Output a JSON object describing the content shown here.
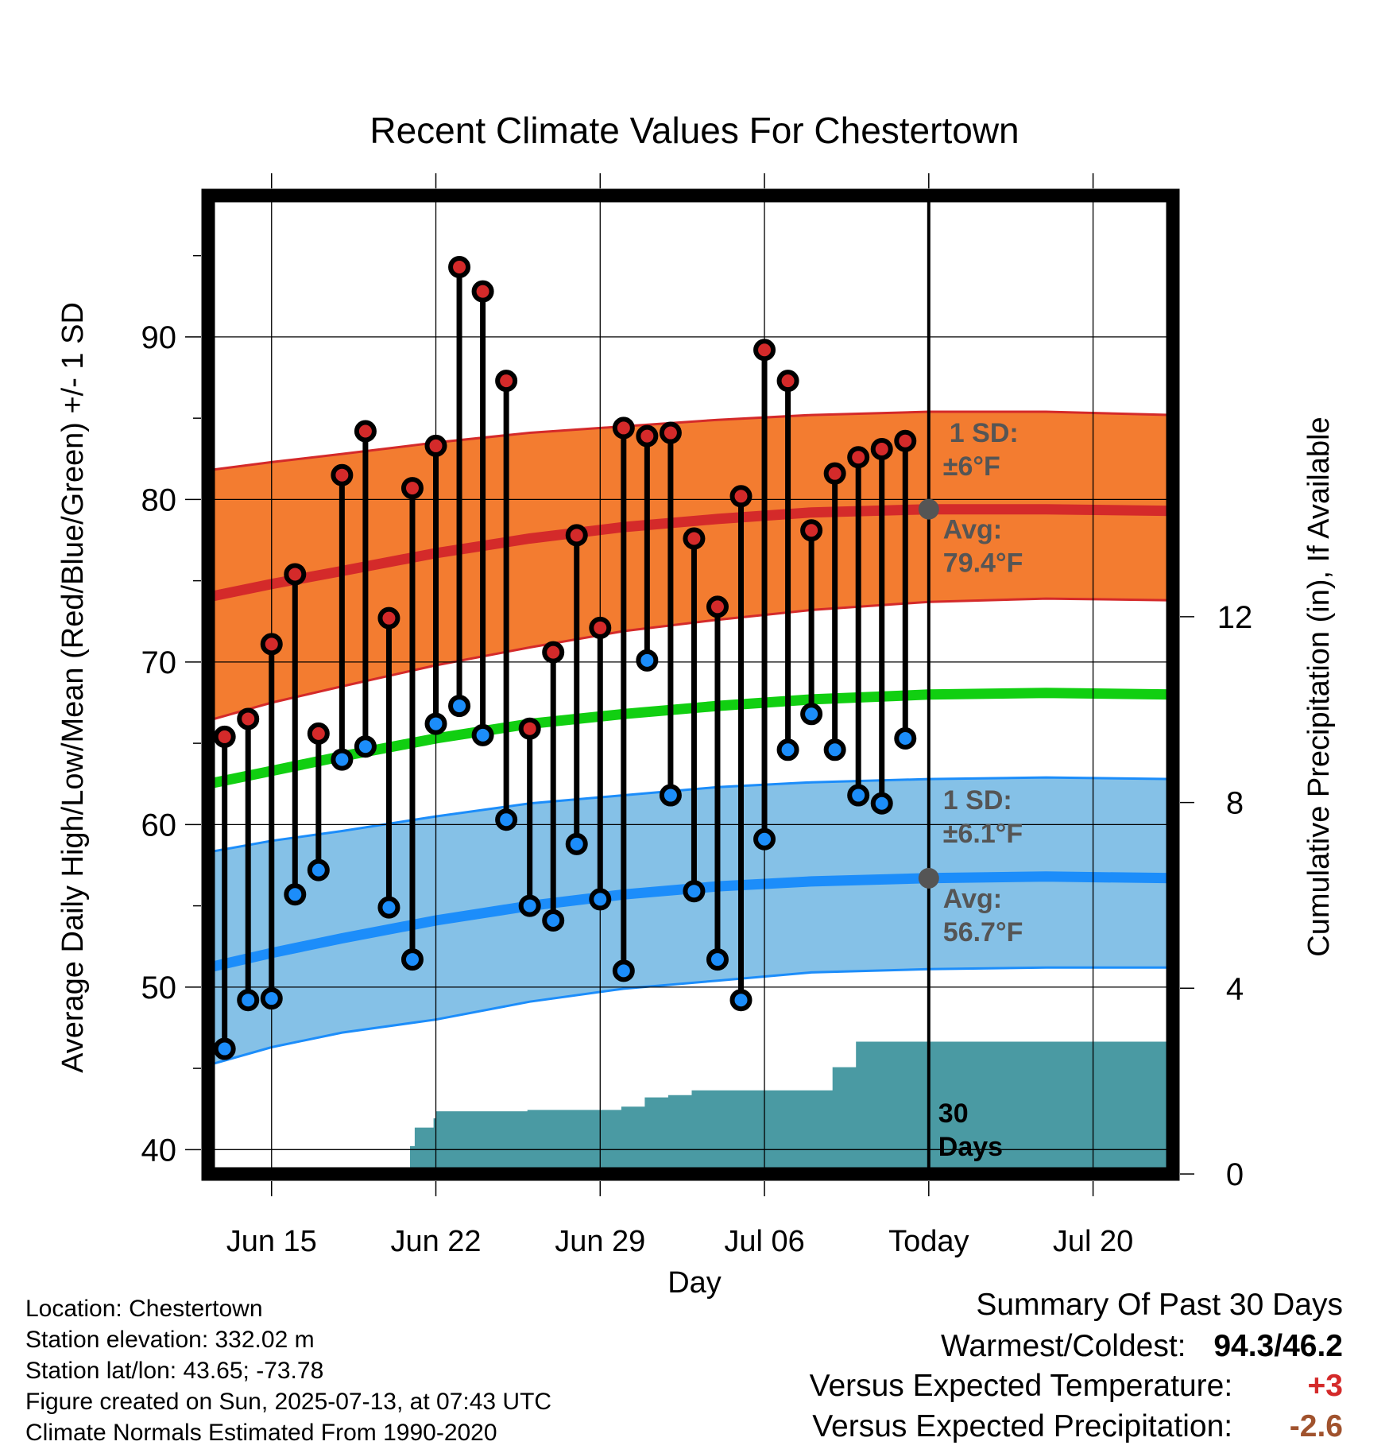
{
  "colors": {
    "high_band": "#f37c30",
    "high_mean": "#d42a2a",
    "low_band": "#85c1e7",
    "low_mean": "#1c8dfa",
    "mean_line": "#11cf11",
    "precip": "#4a9aa3",
    "high_dot": "#d42a2a",
    "low_dot": "#1c8dfa",
    "sd_label": "#555555",
    "plus_color": "#d42a2a",
    "minus_color": "#a0522d"
  },
  "chart_data": {
    "type": "line",
    "title": "Recent Climate Values For Chestertown",
    "xlabel": "Day",
    "ylabel": "Average Daily High/Low/Mean (Red/Blue/Green) +/- 1 SD",
    "y2label": "Cumulative Precipitation (in), If Available",
    "ylim": [
      38.5,
      98.7
    ],
    "y2lim": [
      0,
      21.07
    ],
    "yticks": [
      40,
      50,
      60,
      70,
      80,
      90
    ],
    "y2ticks": [
      0,
      4,
      8,
      12
    ],
    "xlim": [
      12.3,
      53.4
    ],
    "xticks": [
      {
        "x": 15,
        "label": "Jun 15"
      },
      {
        "x": 22,
        "label": "Jun 22"
      },
      {
        "x": 29,
        "label": "Jun 29"
      },
      {
        "x": 36,
        "label": "Jul 06"
      },
      {
        "x": 43,
        "label": "Today"
      },
      {
        "x": 50,
        "label": "Jul 20"
      }
    ],
    "today_x": 43,
    "grid": true,
    "daily": {
      "x": [
        13,
        14,
        15,
        16,
        17,
        18,
        19,
        20,
        21,
        22,
        23,
        24,
        25,
        26,
        27,
        28,
        29,
        30,
        31,
        32,
        33,
        34,
        35,
        36,
        37,
        38,
        39,
        40,
        41,
        42
      ],
      "high": [
        65.4,
        66.5,
        71.1,
        75.4,
        65.6,
        81.5,
        84.2,
        72.7,
        80.7,
        83.3,
        94.3,
        92.8,
        87.3,
        65.9,
        70.6,
        77.8,
        72.1,
        84.4,
        83.9,
        84.1,
        77.6,
        73.4,
        80.2,
        89.2,
        87.3,
        78.1,
        81.6,
        82.6,
        83.1,
        83.6
      ],
      "low": [
        46.2,
        49.2,
        49.3,
        55.7,
        57.2,
        64.0,
        64.8,
        54.9,
        51.7,
        66.2,
        67.3,
        65.5,
        60.3,
        55.0,
        54.1,
        58.8,
        55.4,
        51.0,
        70.1,
        61.8,
        55.9,
        51.7,
        49.2,
        59.1,
        64.6,
        66.8,
        64.6,
        61.8,
        61.3,
        65.3
      ]
    },
    "normals": {
      "x": [
        12.3,
        15,
        18,
        22,
        26,
        30,
        34,
        38,
        43,
        48,
        53.4
      ],
      "high_mean": [
        74.0,
        74.8,
        75.6,
        76.7,
        77.6,
        78.3,
        78.8,
        79.2,
        79.4,
        79.4,
        79.3
      ],
      "high_upper": [
        81.8,
        82.3,
        82.8,
        83.5,
        84.1,
        84.5,
        84.9,
        85.2,
        85.4,
        85.4,
        85.2
      ],
      "high_lower": [
        66.4,
        67.5,
        68.5,
        69.8,
        70.9,
        71.9,
        72.6,
        73.2,
        73.7,
        73.9,
        73.8
      ],
      "mean": [
        62.5,
        63.3,
        64.2,
        65.3,
        66.2,
        66.8,
        67.3,
        67.7,
        68.0,
        68.1,
        68.0
      ],
      "low_mean": [
        51.2,
        52.1,
        53.0,
        54.1,
        55.0,
        55.7,
        56.2,
        56.5,
        56.7,
        56.8,
        56.7
      ],
      "low_upper": [
        58.3,
        59.0,
        59.6,
        60.5,
        61.3,
        61.8,
        62.3,
        62.6,
        62.8,
        62.9,
        62.8
      ],
      "low_lower": [
        45.2,
        46.3,
        47.2,
        48.0,
        49.1,
        49.9,
        50.4,
        50.9,
        51.1,
        51.2,
        51.2
      ]
    },
    "precip": {
      "steps": [
        {
          "x0": 12.3,
          "x1": 16.9,
          "v": 0
        },
        {
          "x0": 16.9,
          "x1": 19.8,
          "v": 0.05
        },
        {
          "x0": 19.8,
          "x1": 20.9,
          "v": 0.1
        },
        {
          "x0": 20.9,
          "x1": 21.1,
          "v": 0.6
        },
        {
          "x0": 21.1,
          "x1": 21.9,
          "v": 1.0
        },
        {
          "x0": 21.9,
          "x1": 22.0,
          "v": 1.2
        },
        {
          "x0": 22.0,
          "x1": 25.9,
          "v": 1.35
        },
        {
          "x0": 25.9,
          "x1": 29.9,
          "v": 1.38
        },
        {
          "x0": 29.9,
          "x1": 30.9,
          "v": 1.45
        },
        {
          "x0": 30.9,
          "x1": 31.9,
          "v": 1.65
        },
        {
          "x0": 31.9,
          "x1": 32.9,
          "v": 1.7
        },
        {
          "x0": 32.9,
          "x1": 38.9,
          "v": 1.8
        },
        {
          "x0": 38.9,
          "x1": 39.9,
          "v": 2.3
        },
        {
          "x0": 39.9,
          "x1": 53.4,
          "v": 2.85
        }
      ]
    },
    "annotations": {
      "high_sd_line1": "1 SD:",
      "high_sd_line2": "±6°F",
      "high_avg_line1": "Avg:",
      "high_avg_line2": "79.4°F",
      "low_sd_line1": "1 SD:",
      "low_sd_line2": "±6.1°F",
      "low_avg_line1": "Avg:",
      "low_avg_line2": "56.7°F",
      "precip_line1": "30",
      "precip_line2": "Days"
    }
  },
  "info": {
    "location": "Location: Chestertown",
    "elevation": "Station elevation: 332.02 m",
    "latlon": "Station lat/lon: 43.65; -73.78",
    "created": "Figure created on Sun, 2025-07-13, at 07:43 UTC",
    "normals": "Climate Normals Estimated From 1990-2020"
  },
  "summary": {
    "title": "Summary Of Past 30 Days",
    "warm_label": "Warmest/Coldest:",
    "warm_value": "94.3/46.2",
    "temp_label": "Versus Expected Temperature:",
    "temp_value": "+3",
    "precip_label": "Versus Expected Precipitation:",
    "precip_value": "-2.6"
  }
}
